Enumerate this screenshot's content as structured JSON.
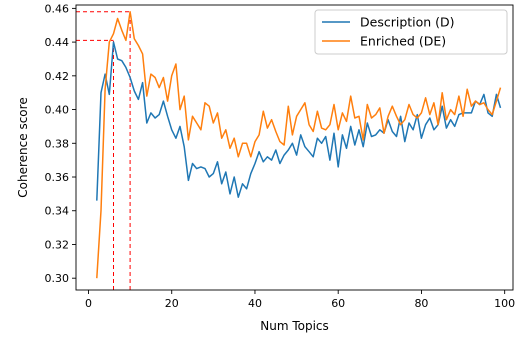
{
  "chart_data": {
    "type": "line",
    "xlabel": "Num Topics",
    "ylabel": "Coherence score",
    "xlim": [
      -3,
      102
    ],
    "ylim": [
      0.293,
      0.462
    ],
    "xticks": [
      0,
      20,
      40,
      60,
      80,
      100
    ],
    "yticks": [
      0.3,
      0.32,
      0.34,
      0.36,
      0.38,
      0.4,
      0.42,
      0.44,
      0.46
    ],
    "grid": false,
    "legend_position": "top-right",
    "x": [
      2,
      3,
      4,
      5,
      6,
      7,
      8,
      9,
      10,
      11,
      12,
      13,
      14,
      15,
      16,
      17,
      18,
      19,
      20,
      21,
      22,
      23,
      24,
      25,
      26,
      27,
      28,
      29,
      30,
      31,
      32,
      33,
      34,
      35,
      36,
      37,
      38,
      39,
      40,
      41,
      42,
      43,
      44,
      45,
      46,
      47,
      48,
      49,
      50,
      51,
      52,
      53,
      54,
      55,
      56,
      57,
      58,
      59,
      60,
      61,
      62,
      63,
      64,
      65,
      66,
      67,
      68,
      69,
      70,
      71,
      72,
      73,
      74,
      75,
      76,
      77,
      78,
      79,
      80,
      81,
      82,
      83,
      84,
      85,
      86,
      87,
      88,
      89,
      90,
      91,
      92,
      93,
      94,
      95,
      96,
      97,
      98,
      99
    ],
    "series": [
      {
        "name": "Description (D)",
        "color": "#1f77b4",
        "values": [
          0.346,
          0.41,
          0.421,
          0.409,
          0.44,
          0.43,
          0.429,
          0.425,
          0.419,
          0.411,
          0.406,
          0.416,
          0.392,
          0.398,
          0.395,
          0.397,
          0.405,
          0.396,
          0.388,
          0.383,
          0.39,
          0.378,
          0.358,
          0.368,
          0.365,
          0.366,
          0.365,
          0.36,
          0.362,
          0.369,
          0.356,
          0.363,
          0.35,
          0.36,
          0.348,
          0.356,
          0.353,
          0.362,
          0.368,
          0.375,
          0.369,
          0.372,
          0.37,
          0.376,
          0.368,
          0.373,
          0.376,
          0.38,
          0.373,
          0.385,
          0.378,
          0.375,
          0.372,
          0.383,
          0.38,
          0.384,
          0.37,
          0.386,
          0.366,
          0.385,
          0.377,
          0.39,
          0.379,
          0.388,
          0.378,
          0.392,
          0.384,
          0.385,
          0.388,
          0.386,
          0.394,
          0.387,
          0.384,
          0.396,
          0.381,
          0.392,
          0.388,
          0.397,
          0.383,
          0.391,
          0.395,
          0.388,
          0.391,
          0.402,
          0.389,
          0.394,
          0.39,
          0.397,
          0.398,
          0.398,
          0.398,
          0.405,
          0.403,
          0.409,
          0.398,
          0.396,
          0.409,
          0.401
        ]
      },
      {
        "name": "Enriched (DE)",
        "color": "#ff7f0e",
        "values": [
          0.3,
          0.34,
          0.412,
          0.44,
          0.445,
          0.454,
          0.447,
          0.441,
          0.458,
          0.442,
          0.438,
          0.433,
          0.408,
          0.421,
          0.419,
          0.413,
          0.419,
          0.405,
          0.42,
          0.427,
          0.4,
          0.408,
          0.382,
          0.396,
          0.392,
          0.388,
          0.404,
          0.402,
          0.392,
          0.398,
          0.383,
          0.388,
          0.377,
          0.383,
          0.372,
          0.38,
          0.38,
          0.372,
          0.381,
          0.385,
          0.399,
          0.389,
          0.394,
          0.387,
          0.381,
          0.379,
          0.402,
          0.385,
          0.396,
          0.4,
          0.404,
          0.391,
          0.387,
          0.399,
          0.389,
          0.388,
          0.391,
          0.403,
          0.388,
          0.398,
          0.393,
          0.408,
          0.395,
          0.396,
          0.382,
          0.403,
          0.395,
          0.397,
          0.401,
          0.386,
          0.396,
          0.402,
          0.396,
          0.391,
          0.394,
          0.403,
          0.397,
          0.395,
          0.398,
          0.407,
          0.397,
          0.404,
          0.391,
          0.41,
          0.394,
          0.4,
          0.397,
          0.408,
          0.396,
          0.412,
          0.402,
          0.405,
          0.403,
          0.404,
          0.4,
          0.397,
          0.405,
          0.413
        ]
      }
    ],
    "annotations": [
      {
        "style": "dashed",
        "color": "#ff0000",
        "x": 6,
        "y": 0.441
      },
      {
        "style": "dashed",
        "color": "#ff0000",
        "x": 10,
        "y": 0.458
      }
    ]
  }
}
